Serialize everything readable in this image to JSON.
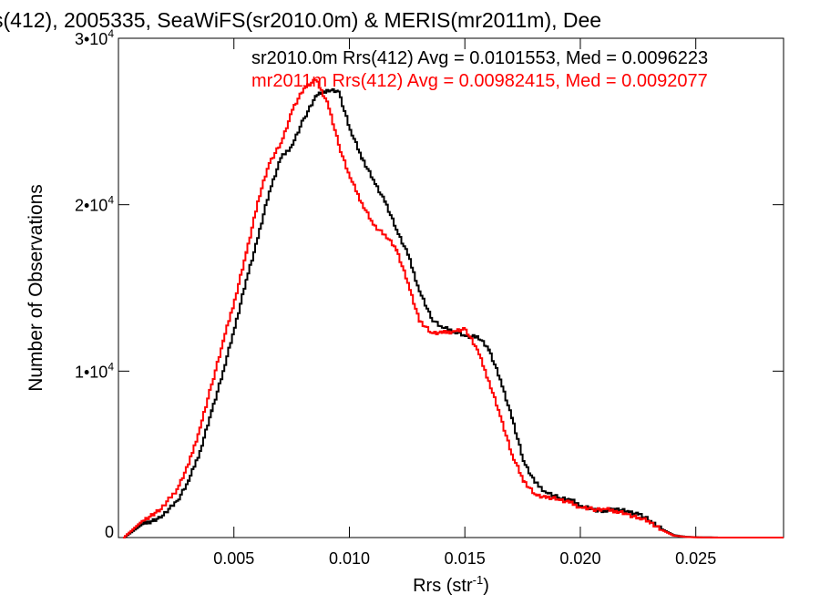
{
  "chart_data": {
    "type": "line",
    "title": "s(412), 2005335, SeaWiFS(sr2010.0m) & MERIS(mr2011m), Dee",
    "xlabel": "Rrs (str",
    "xlabel_sup": "-1",
    "xlabel_close": ")",
    "ylabel": "Number of Observations",
    "xlim": [
      0.0,
      0.0288
    ],
    "ylim": [
      0,
      30000
    ],
    "x_ticks": [
      {
        "value": 0.005,
        "label": "0.005"
      },
      {
        "value": 0.01,
        "label": "0.010"
      },
      {
        "value": 0.015,
        "label": "0.015"
      },
      {
        "value": 0.02,
        "label": "0.020"
      },
      {
        "value": 0.025,
        "label": "0.025"
      }
    ],
    "y_ticks": [
      {
        "value": 0,
        "label": "0",
        "sup": ""
      },
      {
        "value": 10000,
        "label": "1•10",
        "sup": "4"
      },
      {
        "value": 20000,
        "label": "2•10",
        "sup": "4"
      },
      {
        "value": 30000,
        "label": "3•10",
        "sup": "4"
      }
    ],
    "grid": false,
    "legend_position": "top-right",
    "x": [
      0.0002,
      0.001,
      0.0018,
      0.0025,
      0.003,
      0.0035,
      0.004,
      0.0045,
      0.005,
      0.0055,
      0.006,
      0.0065,
      0.007,
      0.0075,
      0.008,
      0.0085,
      0.009,
      0.0095,
      0.01,
      0.0105,
      0.011,
      0.0115,
      0.012,
      0.0125,
      0.013,
      0.0135,
      0.014,
      0.0145,
      0.015,
      0.0155,
      0.016,
      0.0165,
      0.017,
      0.0175,
      0.018,
      0.0185,
      0.019,
      0.0195,
      0.02,
      0.0205,
      0.021,
      0.0215,
      0.022,
      0.0225,
      0.023,
      0.0235,
      0.024,
      0.0245,
      0.025,
      0.026,
      0.027,
      0.0288
    ],
    "series": [
      {
        "name": "sr2010.0m Rrs(412) Avg = 0.0101553, Med = 0.0096223",
        "color": "#000000",
        "values": [
          0,
          800,
          1200,
          2200,
          3400,
          5200,
          7600,
          10000,
          12600,
          15500,
          18000,
          20800,
          22800,
          23600,
          25200,
          26500,
          26900,
          26800,
          24500,
          22800,
          21500,
          20200,
          18500,
          17000,
          14800,
          13200,
          12600,
          12400,
          12100,
          12100,
          11300,
          9500,
          7200,
          4600,
          3300,
          2700,
          2400,
          2300,
          1900,
          1700,
          1600,
          1700,
          1600,
          1400,
          1000,
          500,
          150,
          50,
          20,
          0,
          0,
          0
        ]
      },
      {
        "name": "mr2011m Rrs(412) Avg = 0.00982415, Med = 0.0092077",
        "color": "#ff0000",
        "values": [
          0,
          1000,
          1700,
          2900,
          4400,
          6600,
          9200,
          11800,
          14300,
          17100,
          20200,
          22500,
          23700,
          25700,
          27000,
          27500,
          26200,
          23600,
          21600,
          20100,
          18800,
          18200,
          17300,
          15300,
          13000,
          12300,
          12300,
          12400,
          12500,
          11300,
          9400,
          7300,
          5000,
          3400,
          2600,
          2400,
          2300,
          2100,
          1800,
          1700,
          1700,
          1600,
          1400,
          1200,
          900,
          450,
          120,
          40,
          10,
          0,
          0,
          0
        ]
      }
    ]
  }
}
